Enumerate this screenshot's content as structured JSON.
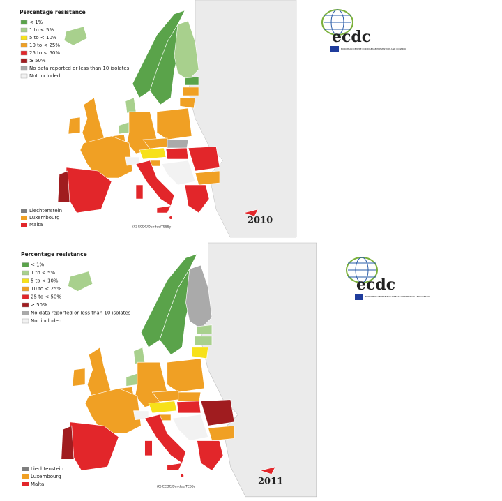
{
  "logo": {
    "name": "ecdc",
    "tagline": "EUROPEAN CENTRE FOR DISEASE PREVENTION AND CONTROL"
  },
  "maps": [
    {
      "legend": {
        "title": "Percentage resistance",
        "items": [
          {
            "label": "< 1%",
            "color": "#5aa34a"
          },
          {
            "label": "1 to < 5%",
            "color": "#a8d08d"
          },
          {
            "label": "5 to < 10%",
            "color": "#f7e11a"
          },
          {
            "label": "10 to < 25%",
            "color": "#f0a024"
          },
          {
            "label": "25 to < 50%",
            "color": "#e2262a"
          },
          {
            "label": "≥ 50%",
            "color": "#a01c1f"
          },
          {
            "label": "No data reported or less than 10 isolates",
            "color": "#aaaaaa"
          },
          {
            "label": "Not included",
            "color": "#f2f2f2"
          }
        ]
      },
      "small_states": [
        {
          "label": "Liechtenstein",
          "color": "#7f7f7f"
        },
        {
          "label": "Luxembourg",
          "color": "#f0a024"
        },
        {
          "label": "Malta",
          "color": "#e2262a"
        }
      ],
      "credit": "(C) ECDC/Dundee/TESSy",
      "year": "2010"
    },
    {
      "legend": {
        "title": "Percentage resistance",
        "items": [
          {
            "label": "< 1%",
            "color": "#5aa34a"
          },
          {
            "label": "1 to < 5%",
            "color": "#a8d08d"
          },
          {
            "label": "5 to < 10%",
            "color": "#f7e11a"
          },
          {
            "label": "10 to < 25%",
            "color": "#f0a024"
          },
          {
            "label": "25 to < 50%",
            "color": "#e2262a"
          },
          {
            "label": "≥ 50%",
            "color": "#a01c1f"
          },
          {
            "label": "No data reported or less than 10 isolates",
            "color": "#aaaaaa"
          },
          {
            "label": "Not included",
            "color": "#f2f2f2"
          }
        ]
      },
      "small_states": [
        {
          "label": "Liechtenstein",
          "color": "#7f7f7f"
        },
        {
          "label": "Luxembourg",
          "color": "#f0a024"
        },
        {
          "label": "Malta",
          "color": "#e2262a"
        }
      ],
      "credit": "(C) ECDC/Dundee/TESSy",
      "year": "2011"
    }
  ]
}
